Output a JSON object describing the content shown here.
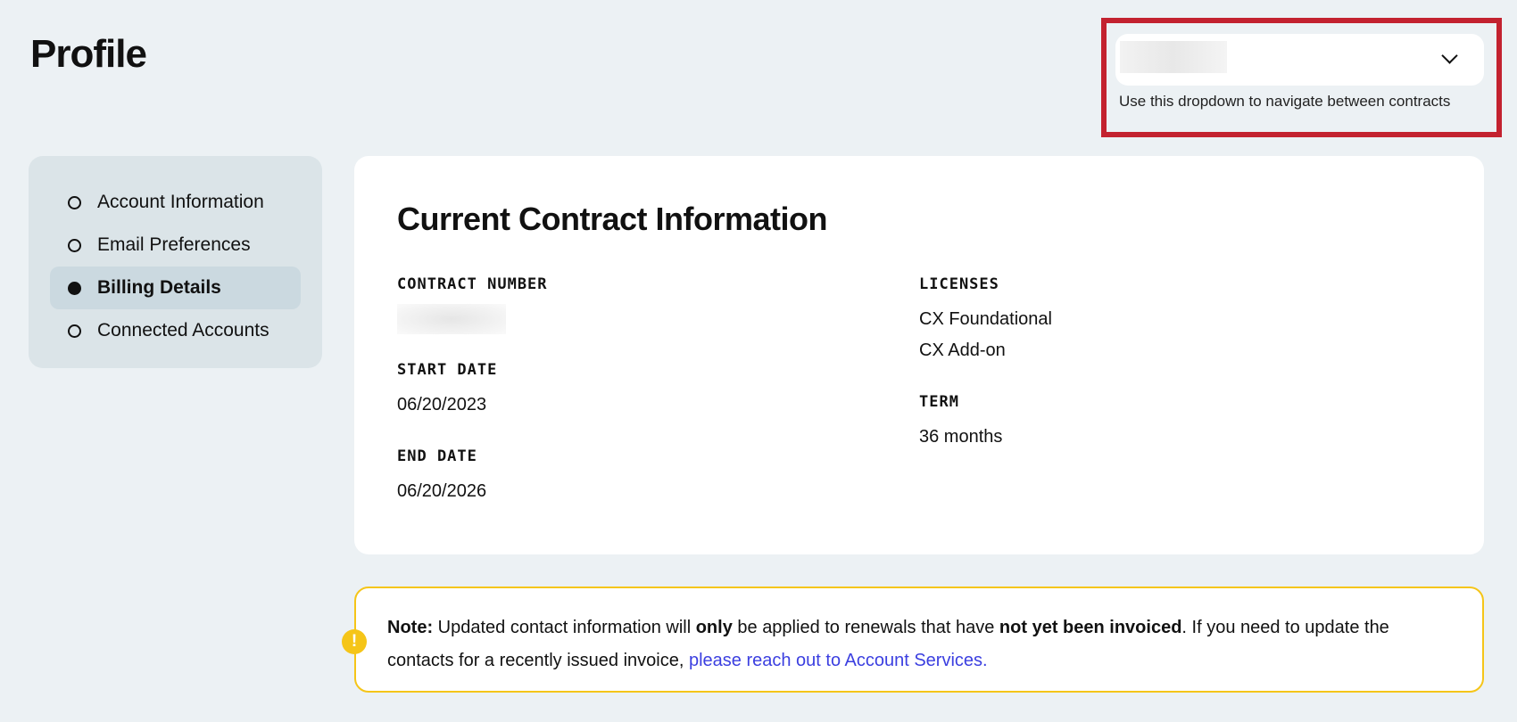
{
  "page": {
    "title": "Profile"
  },
  "contract_selector": {
    "hint": "Use this dropdown to navigate between contracts",
    "highlight_color": "#c3222f"
  },
  "sidebar": {
    "items": [
      {
        "label": "Account Information",
        "active": false
      },
      {
        "label": "Email Preferences",
        "active": false
      },
      {
        "label": "Billing Details",
        "active": true
      },
      {
        "label": "Connected Accounts",
        "active": false
      }
    ]
  },
  "contract": {
    "heading": "Current Contract Information",
    "contract_number_label": "CONTRACT NUMBER",
    "start_date_label": "START DATE",
    "start_date": "06/20/2023",
    "end_date_label": "END DATE",
    "end_date": "06/20/2026",
    "licenses_label": "LICENSES",
    "licenses": [
      "CX Foundational",
      "CX Add-on"
    ],
    "term_label": "TERM",
    "term": "36 months"
  },
  "note": {
    "prefix": "Note:",
    "t1": " Updated contact information will ",
    "b1": "only",
    "t2": " be applied to renewals that have ",
    "b2": "not yet been invoiced",
    "t3": ". If you need to update the contacts for a recently issued invoice, ",
    "link": "please reach out to Account Services.",
    "icon": "warning-icon",
    "accent": "#f5c518"
  }
}
